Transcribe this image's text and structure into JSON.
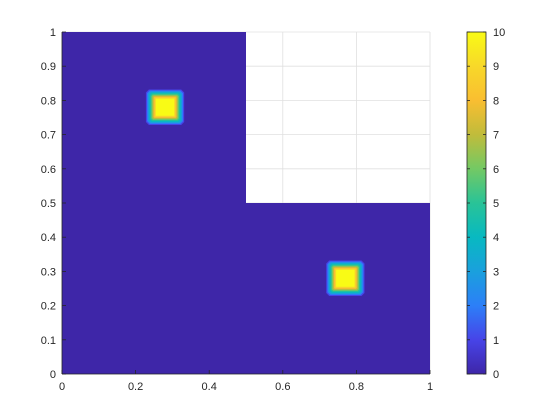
{
  "chart_data": {
    "type": "heatmap",
    "title": "",
    "xlabel": "",
    "ylabel": "",
    "xlim": [
      0,
      1
    ],
    "ylim": [
      0,
      1
    ],
    "grid": true,
    "x_ticks": [
      "0",
      "0.2",
      "0.4",
      "0.6",
      "0.8",
      "1"
    ],
    "y_ticks": [
      "0",
      "0.1",
      "0.2",
      "0.3",
      "0.4",
      "0.5",
      "0.6",
      "0.7",
      "0.8",
      "0.9",
      "1"
    ],
    "domain": "L-shaped: [0,1]x[0,0.5] union [0,0.5]x[0.5,1]",
    "background_value": 0,
    "hotspots": [
      {
        "x": [
          0.24,
          0.32
        ],
        "y": [
          0.74,
          0.82
        ],
        "value": 10
      },
      {
        "x": [
          0.73,
          0.81
        ],
        "y": [
          0.24,
          0.32
        ],
        "value": 10
      }
    ],
    "colorbar": {
      "min": 0,
      "max": 10,
      "ticks": [
        "0",
        "1",
        "2",
        "3",
        "4",
        "5",
        "6",
        "7",
        "8",
        "9",
        "10"
      ],
      "colormap": "parula",
      "colormap_stops": [
        "#3e26a8",
        "#4744e8",
        "#2c7ff8",
        "#1aa0dd",
        "#08b9c1",
        "#29c397",
        "#73c964",
        "#c0bc3b",
        "#f9be31",
        "#f8d829",
        "#f9fb15"
      ]
    }
  }
}
